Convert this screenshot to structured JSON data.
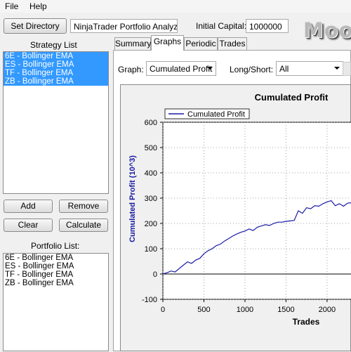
{
  "menu": {
    "file": "File",
    "help": "Help"
  },
  "toolbar": {
    "set_directory": "Set Directory",
    "directory_value": "NinjaTrader Portfolio Analyzer",
    "capital_label": "Initial Capital:",
    "capital_value": "1000000",
    "logo_text": "Moor"
  },
  "strategy": {
    "title": "Strategy List",
    "items": [
      "6E - Bollinger EMA",
      "ES - Bollinger EMA",
      "TF - Bollinger EMA",
      "ZB - Bollinger EMA"
    ]
  },
  "buttons": {
    "add": "Add",
    "remove": "Remove",
    "clear": "Clear",
    "calculate": "Calculate"
  },
  "portfolio": {
    "title": "Portfolio List:",
    "items": [
      "6E - Bollinger EMA",
      "ES - Bollinger EMA",
      "TF - Bollinger EMA",
      "ZB - Bollinger EMA"
    ]
  },
  "tabs": [
    "Summary",
    "Graphs",
    "Periodic",
    "Trades"
  ],
  "graph_controls": {
    "graph_label": "Graph:",
    "graph_value": "Cumulated Profit",
    "longshort_label": "Long/Short:",
    "longshort_value": "All"
  },
  "chart_data": {
    "type": "line",
    "title": "Cumulated Profit",
    "xlabel": "Trades",
    "ylabel": "Cumulated Profit (10^3)",
    "xlim": [
      0,
      2300
    ],
    "ylim": [
      -100,
      600
    ],
    "xticks": [
      0,
      500,
      1000,
      1500,
      2000
    ],
    "yticks": [
      -100,
      0,
      100,
      200,
      300,
      400,
      500,
      600
    ],
    "grid": true,
    "legend_position": "top-left",
    "series": [
      {
        "name": "Cumulated Profit",
        "color": "#1a1aa6",
        "x": [
          0,
          50,
          100,
          150,
          200,
          250,
          300,
          350,
          400,
          450,
          500,
          550,
          600,
          650,
          700,
          750,
          800,
          850,
          900,
          950,
          1000,
          1050,
          1100,
          1150,
          1200,
          1250,
          1300,
          1350,
          1400,
          1450,
          1500,
          1550,
          1600,
          1650,
          1700,
          1750,
          1800,
          1850,
          1900,
          1950,
          2000,
          2050,
          2100,
          2150,
          2200,
          2250,
          2300
        ],
        "y": [
          0,
          5,
          12,
          8,
          22,
          35,
          48,
          42,
          55,
          62,
          80,
          92,
          100,
          112,
          118,
          130,
          140,
          150,
          158,
          165,
          170,
          178,
          172,
          185,
          190,
          195,
          192,
          200,
          205,
          205,
          208,
          210,
          212,
          250,
          240,
          262,
          258,
          270,
          268,
          278,
          285,
          290,
          270,
          278,
          268,
          280,
          282
        ]
      }
    ]
  }
}
